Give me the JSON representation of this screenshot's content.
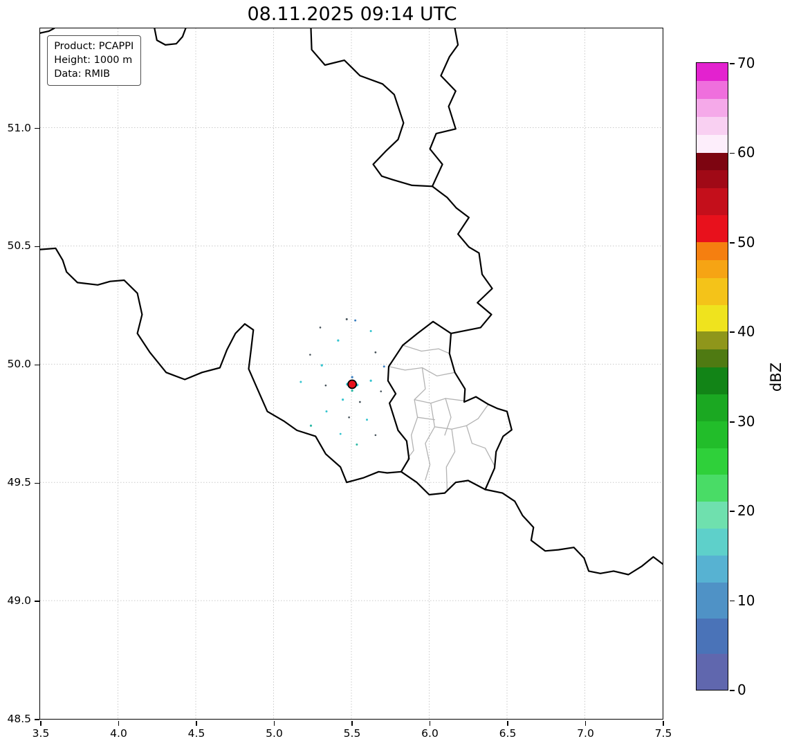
{
  "title": "08.11.2025 09:14 UTC",
  "legend": {
    "product": "Product: PCAPPI",
    "height": "Height: 1000 m",
    "data": "Data: RMIB"
  },
  "chart_data": {
    "type": "map",
    "title": "08.11.2025 09:14 UTC",
    "product": "PCAPPI",
    "height_level": "1000 m",
    "data_source": "RMIB",
    "xlim": [
      3.5,
      7.5
    ],
    "ylim": [
      48.5,
      51.42
    ],
    "x_tick_values": [
      3.5,
      4.0,
      4.5,
      5.0,
      5.5,
      6.0,
      6.5,
      7.0,
      7.5
    ],
    "x_tick_labels": [
      "3.5",
      "4.0",
      "4.5",
      "5.0",
      "5.5",
      "6.0",
      "6.5",
      "7.0",
      "7.5"
    ],
    "y_tick_values": [
      48.5,
      49.0,
      49.5,
      50.0,
      50.5,
      51.0
    ],
    "y_tick_labels": [
      "48.5",
      "49.0",
      "49.5",
      "50.0",
      "50.5",
      "51.0"
    ],
    "grid": {
      "style": "dotted",
      "color": "#c9c9c9"
    },
    "radar_site": {
      "lon": 5.505,
      "lat": 49.915,
      "color": "#e8121c",
      "edge": "#000000",
      "r": 6
    },
    "echo_points": [
      [
        5.47,
        50.19,
        1.5,
        "#46525a"
      ],
      [
        5.525,
        50.185,
        1.5,
        "#3a7fc1"
      ],
      [
        5.3,
        50.155,
        1.3,
        "#46525a"
      ],
      [
        5.625,
        50.14,
        1.5,
        "#35c4cf"
      ],
      [
        5.415,
        50.1,
        1.6,
        "#35c4cf"
      ],
      [
        5.235,
        50.04,
        1.3,
        "#46525a"
      ],
      [
        5.655,
        50.05,
        1.4,
        "#46525a"
      ],
      [
        5.31,
        49.995,
        1.7,
        "#35c4cf"
      ],
      [
        5.71,
        49.99,
        1.5,
        "#3a7fc1"
      ],
      [
        5.175,
        49.925,
        1.5,
        "#35c4cf"
      ],
      [
        5.335,
        49.91,
        1.3,
        "#46525a"
      ],
      [
        5.625,
        49.93,
        1.6,
        "#35c4cf"
      ],
      [
        5.69,
        49.885,
        1.3,
        "#46525a"
      ],
      [
        5.445,
        49.85,
        1.6,
        "#35c4cf"
      ],
      [
        5.555,
        49.84,
        1.4,
        "#46525a"
      ],
      [
        5.34,
        49.8,
        1.5,
        "#35c4cf"
      ],
      [
        5.485,
        49.775,
        1.3,
        "#46525a"
      ],
      [
        5.6,
        49.765,
        1.5,
        "#35c4cf"
      ],
      [
        5.24,
        49.74,
        1.6,
        "#2eb9a6"
      ],
      [
        5.43,
        49.705,
        1.4,
        "#35c4cf"
      ],
      [
        5.535,
        49.66,
        1.5,
        "#2eb9a6"
      ],
      [
        5.655,
        49.7,
        1.3,
        "#46525a"
      ],
      [
        5.475,
        49.915,
        2.2,
        "#35c4cf"
      ],
      [
        5.537,
        49.912,
        2.0,
        "#35c4cf"
      ],
      [
        5.505,
        49.945,
        1.6,
        "#3a7fc1"
      ],
      [
        5.505,
        49.888,
        1.6,
        "#2eb9a6"
      ]
    ],
    "colorbar": {
      "label": "dBZ",
      "min": 0,
      "max": 70,
      "tick_values": [
        0,
        10,
        20,
        30,
        40,
        50,
        60,
        70
      ],
      "segments": [
        [
          0,
          4,
          "#6067ae"
        ],
        [
          4,
          8,
          "#4a73b8"
        ],
        [
          8,
          12,
          "#4f92c6"
        ],
        [
          12,
          15,
          "#57b2d2"
        ],
        [
          15,
          18,
          "#5ed0ca"
        ],
        [
          18,
          21,
          "#6fe0ae"
        ],
        [
          21,
          24,
          "#49dc66"
        ],
        [
          24,
          27,
          "#2fd03a"
        ],
        [
          27,
          30,
          "#22bd2a"
        ],
        [
          30,
          33,
          "#1ba822"
        ],
        [
          33,
          36,
          "#128417"
        ],
        [
          36,
          38,
          "#4f7a12"
        ],
        [
          38,
          40,
          "#8f961b"
        ],
        [
          40,
          43,
          "#efe31e"
        ],
        [
          43,
          46,
          "#f4c319"
        ],
        [
          46,
          48,
          "#f6a414"
        ],
        [
          48,
          50,
          "#f57f10"
        ],
        [
          50,
          53,
          "#e8111c"
        ],
        [
          53,
          56,
          "#c40f1b"
        ],
        [
          56,
          58,
          "#a00916"
        ],
        [
          58,
          60,
          "#7d0511"
        ],
        [
          60,
          62,
          "#fdeefb"
        ],
        [
          62,
          64,
          "#f9d0f2"
        ],
        [
          64,
          66,
          "#f5a9e9"
        ],
        [
          66,
          68,
          "#ef6fdd"
        ],
        [
          68,
          70,
          "#e322cf"
        ]
      ]
    },
    "borders": {
      "country_color": "#000000",
      "region_color": "#b3b3b3",
      "countries": [
        [
          [
            3.5,
            51.4
          ],
          [
            3.555,
            51.408
          ],
          [
            3.59,
            51.42
          ]
        ],
        [
          [
            4.235,
            51.42
          ],
          [
            4.25,
            51.37
          ],
          [
            4.305,
            51.35
          ],
          [
            4.375,
            51.355
          ],
          [
            4.415,
            51.385
          ],
          [
            4.435,
            51.42
          ]
        ],
        [
          [
            5.24,
            51.42
          ],
          [
            5.245,
            51.33
          ],
          [
            5.33,
            51.265
          ],
          [
            5.455,
            51.285
          ],
          [
            5.555,
            51.22
          ],
          [
            5.7,
            51.185
          ],
          [
            5.775,
            51.14
          ],
          [
            5.835,
            51.02
          ],
          [
            5.8,
            50.95
          ],
          [
            5.72,
            50.9
          ],
          [
            5.64,
            50.845
          ],
          [
            5.695,
            50.795
          ],
          [
            5.765,
            50.78
          ],
          [
            5.89,
            50.756
          ],
          [
            6.02,
            50.752
          ]
        ],
        [
          [
            6.02,
            50.752
          ],
          [
            6.085,
            50.845
          ],
          [
            6.005,
            50.91
          ],
          [
            6.045,
            50.975
          ],
          [
            6.17,
            50.995
          ],
          [
            6.125,
            51.09
          ],
          [
            6.17,
            51.155
          ],
          [
            6.075,
            51.22
          ],
          [
            6.13,
            51.3
          ],
          [
            6.185,
            51.35
          ],
          [
            6.165,
            51.42
          ]
        ],
        [
          [
            6.02,
            50.752
          ],
          [
            6.115,
            50.705
          ],
          [
            6.175,
            50.66
          ],
          [
            6.255,
            50.62
          ],
          [
            6.185,
            50.55
          ],
          [
            6.255,
            50.495
          ],
          [
            6.32,
            50.47
          ],
          [
            6.34,
            50.38
          ],
          [
            6.405,
            50.32
          ],
          [
            6.31,
            50.26
          ],
          [
            6.4,
            50.21
          ],
          [
            6.33,
            50.155
          ],
          [
            6.14,
            50.13
          ]
        ],
        [
          [
            6.14,
            50.13
          ],
          [
            6.13,
            50.045
          ],
          [
            6.165,
            49.965
          ],
          [
            6.23,
            49.895
          ],
          [
            6.225,
            49.84
          ],
          [
            6.3,
            49.862
          ],
          [
            6.38,
            49.83
          ],
          [
            6.44,
            49.812
          ],
          [
            6.5,
            49.8
          ],
          [
            6.53,
            49.722
          ],
          [
            6.475,
            49.695
          ],
          [
            6.43,
            49.63
          ],
          [
            6.42,
            49.56
          ],
          [
            6.36,
            49.47
          ],
          [
            6.25,
            49.508
          ],
          [
            6.17,
            49.5
          ],
          [
            6.1,
            49.455
          ],
          [
            6.0,
            49.448
          ],
          [
            5.92,
            49.5
          ],
          [
            5.82,
            49.545
          ],
          [
            5.87,
            49.6
          ],
          [
            5.855,
            49.675
          ],
          [
            5.8,
            49.72
          ],
          [
            5.745,
            49.835
          ],
          [
            5.785,
            49.875
          ],
          [
            5.735,
            49.93
          ],
          [
            5.74,
            49.99
          ],
          [
            5.83,
            50.08
          ],
          [
            5.925,
            50.13
          ],
          [
            6.025,
            50.18
          ],
          [
            6.14,
            50.13
          ]
        ],
        [
          [
            3.5,
            50.485
          ],
          [
            3.6,
            50.49
          ],
          [
            3.645,
            50.44
          ],
          [
            3.67,
            50.39
          ],
          [
            3.74,
            50.345
          ],
          [
            3.87,
            50.335
          ],
          [
            3.95,
            50.35
          ],
          [
            4.04,
            50.355
          ],
          [
            4.125,
            50.3
          ],
          [
            4.155,
            50.21
          ],
          [
            4.125,
            50.13
          ],
          [
            4.205,
            50.05
          ],
          [
            4.31,
            49.965
          ],
          [
            4.43,
            49.935
          ],
          [
            4.54,
            49.965
          ],
          [
            4.655,
            49.985
          ],
          [
            4.7,
            50.06
          ],
          [
            4.755,
            50.13
          ],
          [
            4.815,
            50.17
          ],
          [
            4.87,
            50.145
          ],
          [
            4.855,
            50.06
          ],
          [
            4.84,
            49.98
          ],
          [
            4.89,
            49.905
          ],
          [
            4.96,
            49.8
          ],
          [
            5.065,
            49.76
          ],
          [
            5.15,
            49.72
          ],
          [
            5.27,
            49.695
          ],
          [
            5.335,
            49.62
          ],
          [
            5.43,
            49.565
          ],
          [
            5.47,
            49.5
          ],
          [
            5.58,
            49.52
          ],
          [
            5.675,
            49.545
          ],
          [
            5.73,
            49.54
          ],
          [
            5.82,
            49.545
          ]
        ],
        [
          [
            6.36,
            49.47
          ],
          [
            6.47,
            49.455
          ],
          [
            6.55,
            49.42
          ],
          [
            6.6,
            49.36
          ],
          [
            6.67,
            49.31
          ],
          [
            6.655,
            49.255
          ],
          [
            6.745,
            49.21
          ],
          [
            6.83,
            49.215
          ],
          [
            6.93,
            49.225
          ],
          [
            6.995,
            49.18
          ],
          [
            7.025,
            49.125
          ],
          [
            7.1,
            49.115
          ],
          [
            7.185,
            49.125
          ],
          [
            7.28,
            49.11
          ],
          [
            7.365,
            49.145
          ],
          [
            7.44,
            49.185
          ],
          [
            7.5,
            49.155
          ]
        ]
      ],
      "regions": [
        [
          [
            5.83,
            50.08
          ],
          [
            5.95,
            50.055
          ],
          [
            6.06,
            50.065
          ],
          [
            6.13,
            50.045
          ]
        ],
        [
          [
            5.74,
            49.99
          ],
          [
            5.845,
            49.975
          ],
          [
            5.955,
            49.985
          ],
          [
            6.05,
            49.95
          ],
          [
            6.165,
            49.965
          ]
        ],
        [
          [
            5.955,
            49.985
          ],
          [
            5.975,
            49.895
          ],
          [
            5.905,
            49.85
          ],
          [
            5.925,
            49.775
          ],
          [
            5.885,
            49.7
          ],
          [
            5.9,
            49.635
          ],
          [
            5.86,
            49.6
          ]
        ],
        [
          [
            5.905,
            49.85
          ],
          [
            6.01,
            49.835
          ],
          [
            6.105,
            49.855
          ],
          [
            6.225,
            49.845
          ]
        ],
        [
          [
            6.105,
            49.855
          ],
          [
            6.14,
            49.775
          ],
          [
            6.1,
            49.7
          ]
        ],
        [
          [
            6.01,
            49.835
          ],
          [
            6.035,
            49.735
          ],
          [
            5.975,
            49.665
          ],
          [
            6.005,
            49.575
          ],
          [
            5.975,
            49.51
          ]
        ],
        [
          [
            5.925,
            49.775
          ],
          [
            6.035,
            49.765
          ]
        ],
        [
          [
            6.035,
            49.735
          ],
          [
            6.145,
            49.725
          ],
          [
            6.24,
            49.74
          ],
          [
            6.315,
            49.77
          ]
        ],
        [
          [
            6.145,
            49.725
          ],
          [
            6.165,
            49.63
          ],
          [
            6.11,
            49.565
          ],
          [
            6.115,
            49.47
          ]
        ],
        [
          [
            6.24,
            49.74
          ],
          [
            6.275,
            49.665
          ],
          [
            6.36,
            49.645
          ],
          [
            6.42,
            49.57
          ]
        ],
        [
          [
            6.315,
            49.77
          ],
          [
            6.38,
            49.83
          ]
        ]
      ]
    }
  }
}
